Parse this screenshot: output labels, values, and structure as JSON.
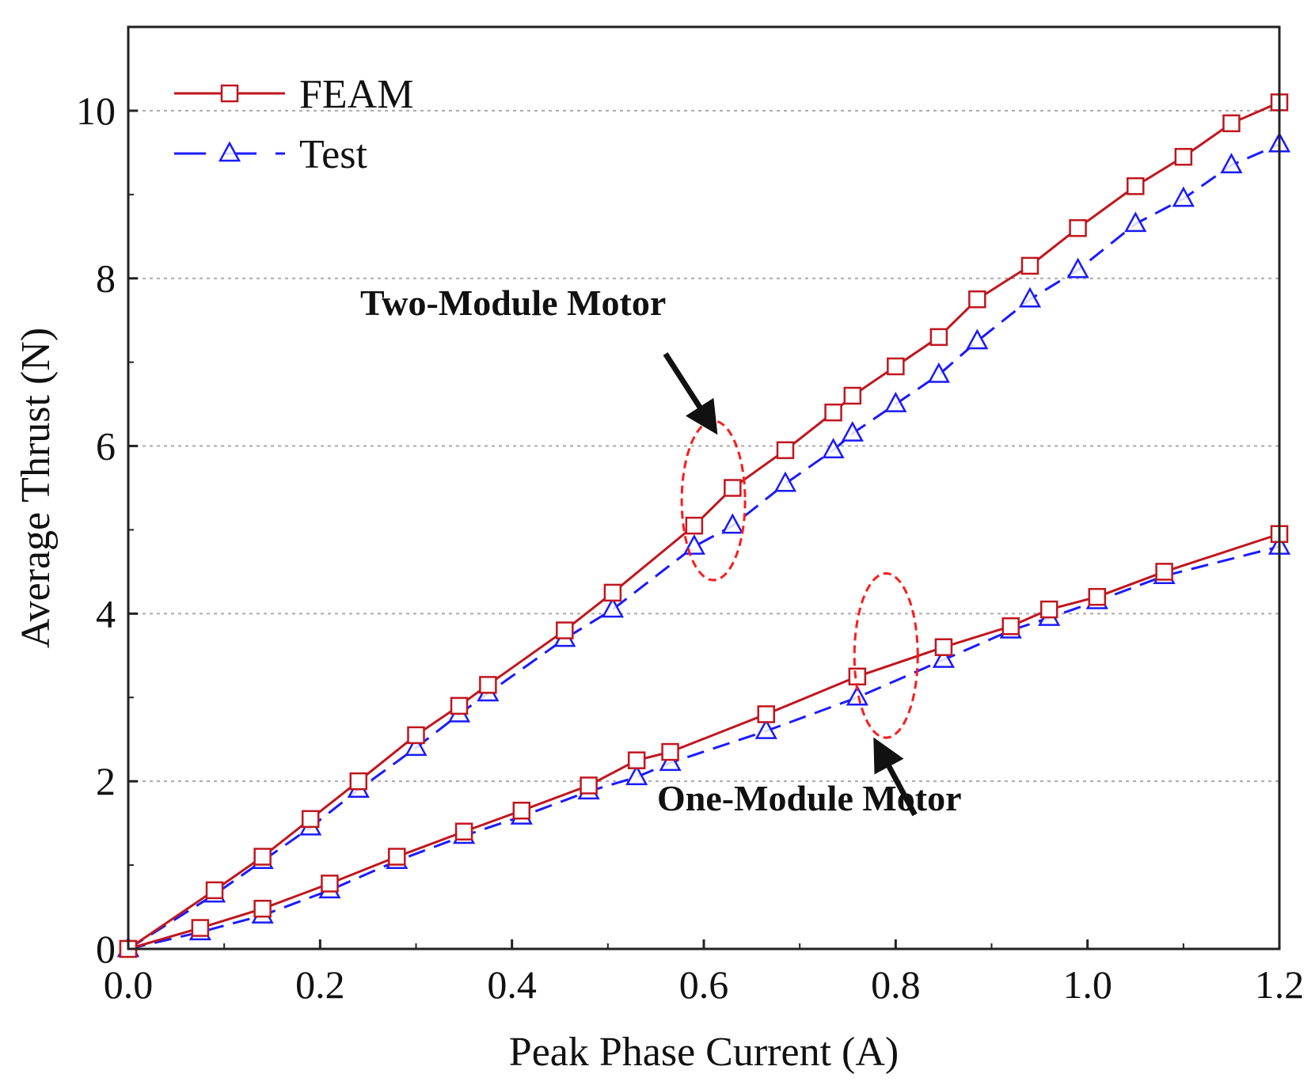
{
  "chart_data": {
    "type": "line",
    "xlabel": "Peak Phase Current (A)",
    "ylabel": "Average Thrust (N)",
    "xlim": [
      0.0,
      1.2
    ],
    "ylim": [
      0,
      11
    ],
    "xticks": [
      "0.0",
      "0.2",
      "0.4",
      "0.6",
      "0.8",
      "1.0",
      "1.2"
    ],
    "xtick_values": [
      0.0,
      0.2,
      0.4,
      0.6,
      0.8,
      1.0,
      1.2
    ],
    "yticks": [
      "0",
      "2",
      "4",
      "6",
      "8",
      "10"
    ],
    "ytick_values": [
      0,
      2,
      4,
      6,
      8,
      10
    ],
    "grid": "horizontal dotted",
    "legend": [
      {
        "label": "FEAM",
        "color": "#c0161e",
        "marker": "square",
        "dash": "solid"
      },
      {
        "label": "Test",
        "color": "#1a1aff",
        "marker": "triangle",
        "dash": "dashed"
      }
    ],
    "series": [
      {
        "name": "FEAM",
        "group": "Two-Module Motor",
        "x": [
          0.0,
          0.09,
          0.14,
          0.19,
          0.24,
          0.3,
          0.345,
          0.375,
          0.455,
          0.505,
          0.59,
          0.63,
          0.685,
          0.735,
          0.755,
          0.8,
          0.845,
          0.885,
          0.94,
          0.99,
          1.05,
          1.1,
          1.15,
          1.2
        ],
        "y": [
          0.0,
          0.7,
          1.1,
          1.55,
          2.0,
          2.55,
          2.9,
          3.15,
          3.8,
          4.25,
          5.05,
          5.5,
          5.95,
          6.4,
          6.6,
          6.95,
          7.3,
          7.75,
          8.15,
          8.6,
          9.1,
          9.45,
          9.85,
          10.1
        ]
      },
      {
        "name": "Test",
        "group": "Two-Module Motor",
        "x": [
          0.0,
          0.09,
          0.14,
          0.19,
          0.24,
          0.3,
          0.345,
          0.375,
          0.455,
          0.505,
          0.59,
          0.63,
          0.685,
          0.735,
          0.755,
          0.8,
          0.845,
          0.885,
          0.94,
          0.99,
          1.05,
          1.1,
          1.15,
          1.2
        ],
        "y": [
          0.0,
          0.65,
          1.05,
          1.45,
          1.9,
          2.4,
          2.8,
          3.05,
          3.7,
          4.05,
          4.8,
          5.05,
          5.55,
          5.95,
          6.15,
          6.5,
          6.85,
          7.25,
          7.75,
          8.1,
          8.65,
          8.95,
          9.35,
          9.6
        ]
      },
      {
        "name": "FEAM",
        "group": "One-Module Motor",
        "x": [
          0.0,
          0.075,
          0.14,
          0.21,
          0.28,
          0.35,
          0.41,
          0.48,
          0.53,
          0.565,
          0.665,
          0.76,
          0.85,
          0.92,
          0.96,
          1.01,
          1.08,
          1.2
        ],
        "y": [
          0.0,
          0.25,
          0.48,
          0.78,
          1.1,
          1.4,
          1.65,
          1.95,
          2.25,
          2.35,
          2.8,
          3.25,
          3.6,
          3.85,
          4.05,
          4.2,
          4.5,
          4.95
        ]
      },
      {
        "name": "Test",
        "group": "One-Module Motor",
        "x": [
          0.0,
          0.075,
          0.14,
          0.21,
          0.28,
          0.35,
          0.41,
          0.48,
          0.53,
          0.565,
          0.665,
          0.76,
          0.85,
          0.92,
          0.96,
          1.01,
          1.08,
          1.2
        ],
        "y": [
          0.0,
          0.2,
          0.4,
          0.7,
          1.05,
          1.35,
          1.58,
          1.88,
          2.05,
          2.22,
          2.6,
          3.0,
          3.45,
          3.8,
          3.95,
          4.15,
          4.45,
          4.8
        ]
      }
    ],
    "annotations": [
      {
        "text": "Two-Module Motor",
        "ellipse_center": [
          0.61,
          5.35
        ],
        "ellipse_radii": [
          0.033,
          0.95
        ],
        "arrow_from": [
          0.56,
          7.1
        ],
        "arrow_to": [
          0.605,
          6.3
        ]
      },
      {
        "text": "One-Module Motor",
        "ellipse_center": [
          0.79,
          3.5
        ],
        "ellipse_radii": [
          0.033,
          0.98
        ],
        "arrow_from": [
          0.82,
          1.6
        ],
        "arrow_to": [
          0.785,
          2.35
        ]
      }
    ]
  }
}
